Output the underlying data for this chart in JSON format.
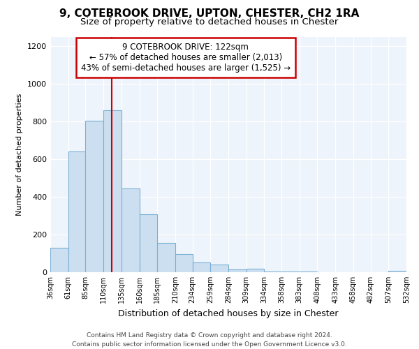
{
  "title1": "9, COTEBROOK DRIVE, UPTON, CHESTER, CH2 1RA",
  "title2": "Size of property relative to detached houses in Chester",
  "xlabel": "Distribution of detached houses by size in Chester",
  "ylabel": "Number of detached properties",
  "bar_edges": [
    36,
    61,
    85,
    110,
    135,
    160,
    185,
    210,
    234,
    259,
    284,
    309,
    334,
    358,
    383,
    408,
    433,
    458,
    482,
    507,
    532
  ],
  "bar_heights": [
    130,
    640,
    805,
    860,
    445,
    308,
    155,
    95,
    52,
    40,
    15,
    20,
    3,
    3,
    3,
    1,
    1,
    1,
    1,
    8
  ],
  "bar_color": "#ccdff0",
  "bar_edge_color": "#7aafd4",
  "vline_x": 122,
  "vline_color": "#cc0000",
  "annotation_line1": "9 COTEBROOK DRIVE: 122sqm",
  "annotation_line2": "← 57% of detached houses are smaller (2,013)",
  "annotation_line3": "43% of semi-detached houses are larger (1,525) →",
  "annotation_box_facecolor": "#ffffff",
  "annotation_box_edgecolor": "#cc0000",
  "ylim": [
    0,
    1250
  ],
  "yticks": [
    0,
    200,
    400,
    600,
    800,
    1000,
    1200
  ],
  "tick_labels": [
    "36sqm",
    "61sqm",
    "85sqm",
    "110sqm",
    "135sqm",
    "160sqm",
    "185sqm",
    "210sqm",
    "234sqm",
    "259sqm",
    "284sqm",
    "309sqm",
    "334sqm",
    "358sqm",
    "383sqm",
    "408sqm",
    "433sqm",
    "458sqm",
    "482sqm",
    "507sqm",
    "532sqm"
  ],
  "footer1": "Contains HM Land Registry data © Crown copyright and database right 2024.",
  "footer2": "Contains public sector information licensed under the Open Government Licence v3.0.",
  "bg_color": "#ffffff",
  "plot_bg_color": "#eef4fb",
  "grid_color": "#ffffff",
  "title1_fontsize": 11,
  "title2_fontsize": 9.5,
  "ylabel_fontsize": 8,
  "xlabel_fontsize": 9
}
